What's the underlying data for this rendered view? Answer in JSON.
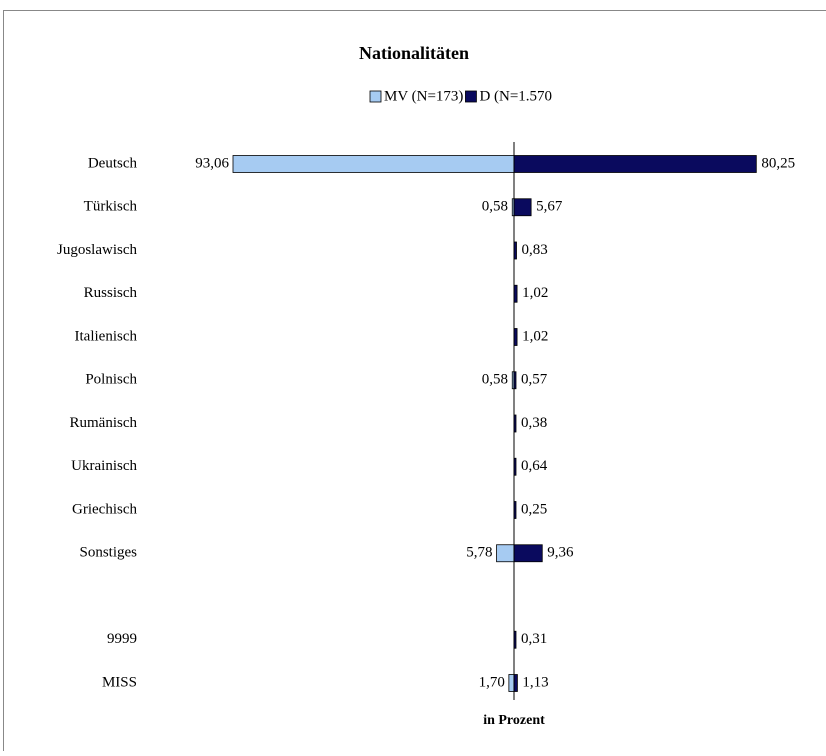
{
  "chart_data": {
    "type": "diverging-bar",
    "title": "Nationalitäten",
    "xlabel": "in Prozent",
    "categories": [
      "Deutsch",
      "Türkisch",
      "Jugoslawisch",
      "Russisch",
      "Italienisch",
      "Polnisch",
      "Rumänisch",
      "Ukrainisch",
      "Griechisch",
      "Sonstiges",
      null,
      "9999",
      "MISS"
    ],
    "series": [
      {
        "name": "MV (N=173)",
        "color": "#a6cbf2",
        "side": "left",
        "values": [
          93.06,
          0.58,
          null,
          null,
          null,
          0.58,
          null,
          null,
          null,
          5.78,
          null,
          null,
          1.7
        ],
        "value_labels": [
          "93,06",
          "0,58",
          null,
          null,
          null,
          "0,58",
          null,
          null,
          null,
          "5,78",
          null,
          null,
          "1,70"
        ]
      },
      {
        "name": "D (N=1.570",
        "color": "#0a0a5e",
        "side": "right",
        "values": [
          80.25,
          5.67,
          0.83,
          1.02,
          1.02,
          0.57,
          0.38,
          0.64,
          0.25,
          9.36,
          null,
          0.31,
          1.13
        ],
        "value_labels": [
          "80,25",
          "5,67",
          "0,83",
          "1,02",
          "1,02",
          "0,57",
          "0,38",
          "0,64",
          "0,25",
          "9,36",
          null,
          "0,31",
          "1,13"
        ]
      }
    ]
  }
}
